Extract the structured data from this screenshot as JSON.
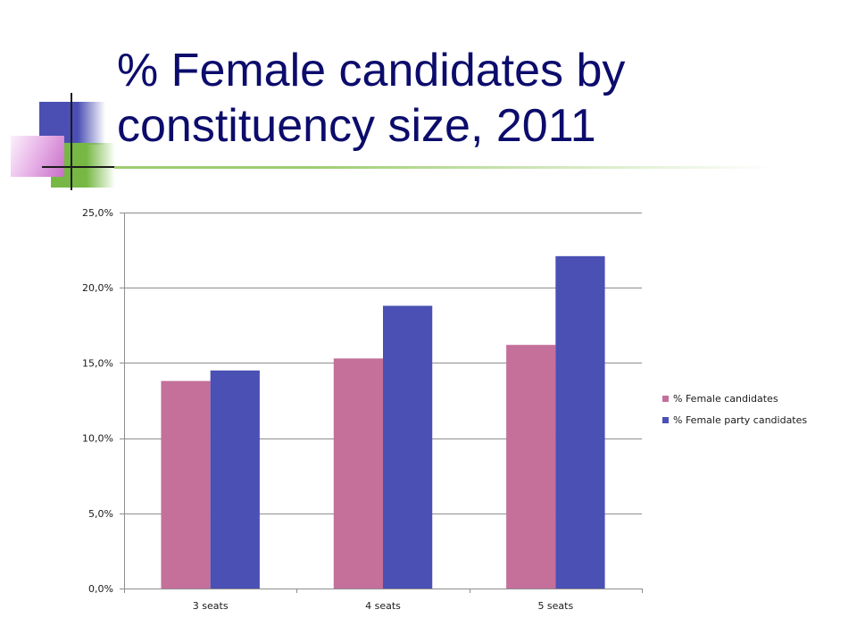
{
  "theme": {
    "title_color": "#0c0c6c",
    "accent_blue": "#4b4fb3",
    "accent_green": "#76b843",
    "accent_pink": "#c86ec8",
    "rule_green": "#9fcd72",
    "rule_dark": "#1c1c1c"
  },
  "chart_data": {
    "type": "bar",
    "title": "% Female candidates by constituency size, 2011",
    "categories": [
      "3 seats",
      "4 seats",
      "5 seats"
    ],
    "series": [
      {
        "name": "% Female candidates",
        "values": [
          13.8,
          15.3,
          16.2
        ],
        "color": "#c4709b"
      },
      {
        "name": "% Female party candidates",
        "values": [
          14.5,
          18.8,
          22.1
        ],
        "color": "#4a50b4"
      }
    ],
    "ylim": [
      0,
      25
    ],
    "yticks": [
      0,
      5,
      10,
      15,
      20,
      25
    ],
    "ytick_labels": [
      "0,0%",
      "5,0%",
      "10,0%",
      "15,0%",
      "20,0%",
      "25,0%"
    ],
    "grid": true,
    "legend": "right"
  }
}
